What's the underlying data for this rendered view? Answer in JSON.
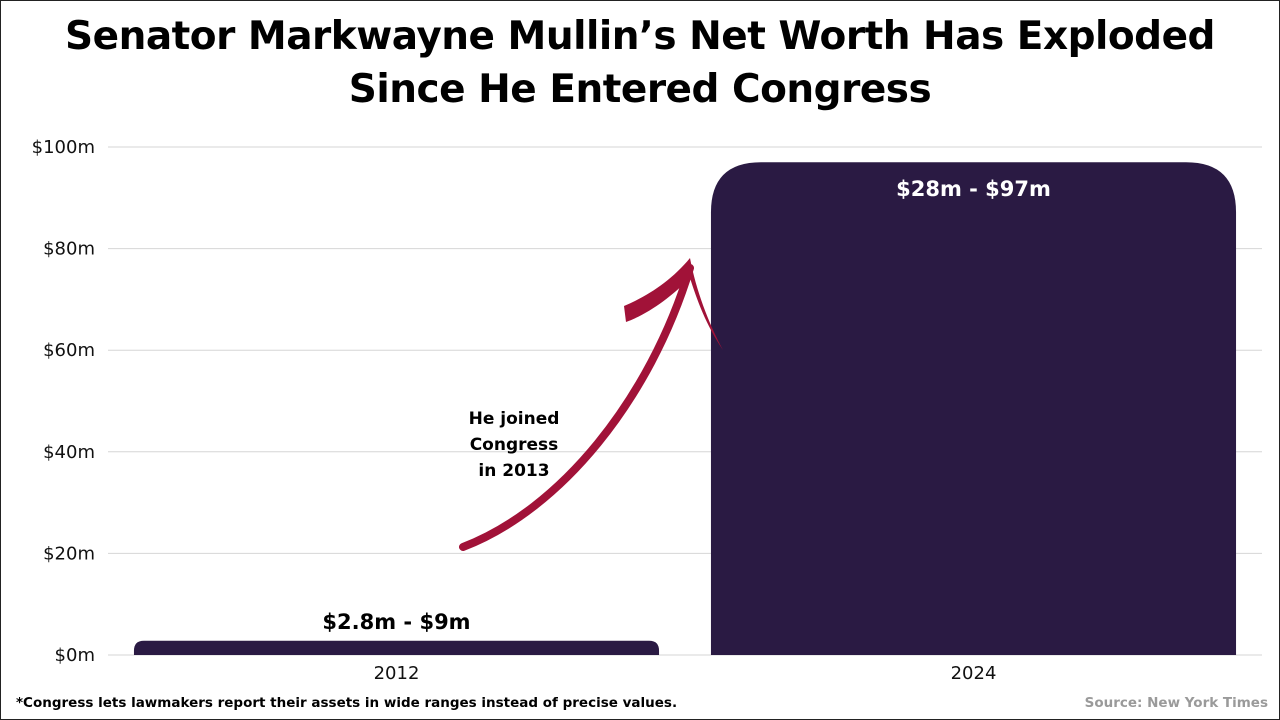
{
  "chart_data": {
    "type": "bar",
    "title_lines": [
      "Senator Markwayne Mullin’s Net Worth Has Exploded",
      "Since He Entered Congress"
    ],
    "categories": [
      "2012",
      "2024"
    ],
    "series": [
      {
        "values_low": [
          2.8,
          28
        ],
        "values_high": [
          9,
          97
        ]
      }
    ],
    "bar_values": [
      2.8,
      97
    ],
    "data_labels": [
      "$2.8m - $9m",
      "$28m - $97m"
    ],
    "ylim": [
      0,
      100
    ],
    "yticks": [
      0,
      20,
      40,
      60,
      80,
      100
    ],
    "ytick_labels": [
      "$0m",
      "$20m",
      "$40m",
      "$60m",
      "$80m",
      "$100m"
    ],
    "grid": true,
    "bar_color": "#2a1a43",
    "annotation": {
      "lines": [
        "He joined",
        "Congress",
        "in 2013"
      ],
      "arrow_color": "#a11238"
    },
    "footnote": "*Congress lets lawmakers report their assets in wide ranges instead of precise values.",
    "source": "Source: New York Times"
  }
}
